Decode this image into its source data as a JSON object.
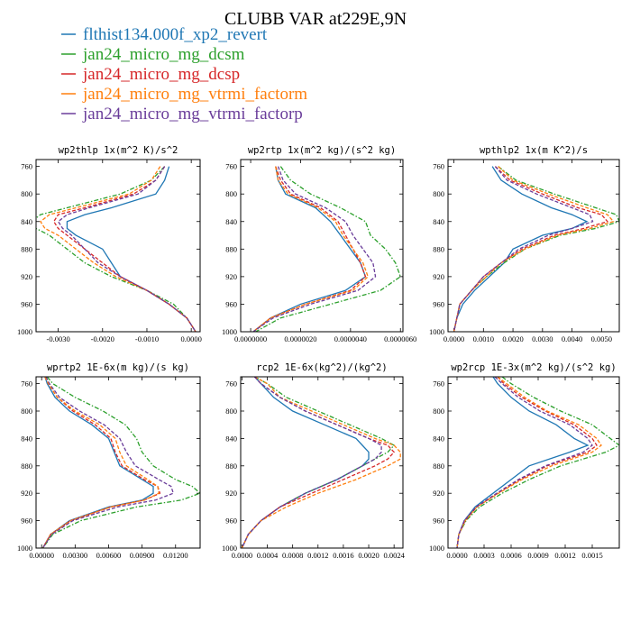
{
  "title": "CLUBB VAR at229E,9N",
  "colors": {
    "blue": "#1f77b4",
    "green": "#2ca02c",
    "red": "#d62728",
    "orange": "#ff7f0e",
    "purple": "#6a3d9a"
  },
  "legend": [
    {
      "label": "flthist134.000f_xp2_revert",
      "color": "#1f77b4",
      "dash": "solid"
    },
    {
      "label": "jan24_micro_mg_dcsm",
      "color": "#2ca02c",
      "dash": "dashdot"
    },
    {
      "label": "jan24_micro_mg_dcsp",
      "color": "#d62728",
      "dash": "dashed"
    },
    {
      "label": "jan24_micro_mg_vtrmi_factorm",
      "color": "#ff7f0e",
      "dash": "dashed"
    },
    {
      "label": "jan24_micro_mg_vtrmi_factorp",
      "color": "#6a3d9a",
      "dash": "dashed"
    }
  ],
  "chart_data": [
    {
      "type": "line",
      "title": "wp2thlp  1x(m^2 K)/s^2",
      "ylim": [
        1000,
        750
      ],
      "yticks": [
        "760",
        "800",
        "840",
        "880",
        "920",
        "960",
        "1000"
      ],
      "xlim": [
        -0.0035,
        0.0002
      ],
      "xticks": [
        -0.003,
        -0.002,
        -0.001,
        0.0
      ],
      "xtick_labels": [
        "-0.0030",
        "-0.0020",
        "-0.0010",
        "0.0000"
      ],
      "y": [
        760,
        780,
        800,
        820,
        830,
        840,
        850,
        860,
        880,
        900,
        920,
        940,
        960,
        980,
        990,
        1000
      ],
      "series": [
        {
          "values": [
            -0.0005,
            -0.0006,
            -0.0008,
            -0.0018,
            -0.0024,
            -0.0028,
            -0.0028,
            -0.0026,
            -0.002,
            -0.0018,
            -0.0016,
            -0.001,
            -0.0005,
            -0.0001,
            0.0,
            0.0001
          ]
        },
        {
          "values": [
            -0.0006,
            -0.0009,
            -0.0016,
            -0.0028,
            -0.0034,
            -0.0036,
            -0.0035,
            -0.0032,
            -0.0028,
            -0.0024,
            -0.0018,
            -0.001,
            -0.0004,
            -0.0001,
            0.0,
            0.0001
          ]
        },
        {
          "values": [
            -0.0006,
            -0.0008,
            -0.0013,
            -0.0024,
            -0.003,
            -0.0031,
            -0.003,
            -0.0028,
            -0.0024,
            -0.002,
            -0.0016,
            -0.001,
            -0.0005,
            -0.0001,
            0.0,
            0.0001
          ]
        },
        {
          "values": [
            -0.0007,
            -0.0009,
            -0.0014,
            -0.0026,
            -0.0032,
            -0.0034,
            -0.0033,
            -0.003,
            -0.0026,
            -0.0022,
            -0.0017,
            -0.001,
            -0.0005,
            -0.0001,
            0.0,
            0.0001
          ]
        },
        {
          "values": [
            -0.0006,
            -0.0008,
            -0.0012,
            -0.0023,
            -0.0028,
            -0.003,
            -0.0029,
            -0.0027,
            -0.0024,
            -0.0021,
            -0.0016,
            -0.001,
            -0.0005,
            -0.0001,
            0.0,
            0.0001
          ]
        }
      ]
    },
    {
      "type": "line",
      "title": "wp2rtp  1x(m^2 kg)/(s^2 kg)",
      "ylim": [
        1000,
        750
      ],
      "yticks": [
        "760",
        "800",
        "840",
        "880",
        "920",
        "960",
        "1000"
      ],
      "xlim": [
        -4e-07,
        6.1e-06
      ],
      "xticks": [
        0.0,
        2e-06,
        4e-06,
        6e-06
      ],
      "xtick_labels": [
        "0.0000000",
        "0.0000020",
        "0.0000040",
        "0.0000060"
      ],
      "y": [
        760,
        780,
        800,
        820,
        840,
        860,
        880,
        900,
        920,
        940,
        960,
        980,
        1000
      ],
      "series": [
        {
          "values": [
            1e-06,
            1.1e-06,
            1.4e-06,
            2.6e-06,
            3.2e-06,
            3.6e-06,
            4e-06,
            4.4e-06,
            4.6e-06,
            3.8e-06,
            2e-06,
            8e-07,
            1e-07
          ]
        },
        {
          "values": [
            1.2e-06,
            1.6e-06,
            2.4e-06,
            3.6e-06,
            4.6e-06,
            4.8e-06,
            5.4e-06,
            5.8e-06,
            6e-06,
            5.2e-06,
            3.2e-06,
            1.2e-06,
            2e-07
          ]
        },
        {
          "values": [
            1e-06,
            1.2e-06,
            1.6e-06,
            2.8e-06,
            3.5e-06,
            3.8e-06,
            4.1e-06,
            4.4e-06,
            4.6e-06,
            4e-06,
            2.2e-06,
            8e-07,
            1e-07
          ]
        },
        {
          "values": [
            1e-06,
            1.1e-06,
            1.5e-06,
            2.7e-06,
            3.4e-06,
            3.7e-06,
            4.1e-06,
            4.5e-06,
            4.7e-06,
            4.1e-06,
            2.2e-06,
            8e-07,
            1e-07
          ]
        },
        {
          "values": [
            1.1e-06,
            1.3e-06,
            1.8e-06,
            3e-06,
            3.8e-06,
            4.1e-06,
            4.5e-06,
            4.9e-06,
            5e-06,
            4.3e-06,
            2.4e-06,
            9e-07,
            1e-07
          ]
        }
      ]
    },
    {
      "type": "line",
      "title": "wpthlp2  1x(m K^2)/s",
      "ylim": [
        1000,
        750
      ],
      "yticks": [
        "760",
        "800",
        "840",
        "880",
        "920",
        "960",
        "1000"
      ],
      "xlim": [
        -0.0002,
        0.0056
      ],
      "xticks": [
        0.0,
        0.001,
        0.002,
        0.003,
        0.004,
        0.005
      ],
      "xtick_labels": [
        "0.0000",
        "0.0010",
        "0.0020",
        "0.0030",
        "0.0040",
        "0.0050"
      ],
      "y": [
        760,
        780,
        800,
        820,
        830,
        840,
        850,
        860,
        880,
        900,
        920,
        940,
        960,
        980,
        1000
      ],
      "series": [
        {
          "values": [
            0.0013,
            0.0016,
            0.0023,
            0.0033,
            0.004,
            0.0045,
            0.004,
            0.003,
            0.002,
            0.0017,
            0.0012,
            0.0007,
            0.0003,
            0.0001,
            0.0
          ]
        },
        {
          "values": [
            0.0015,
            0.0021,
            0.0034,
            0.0048,
            0.0055,
            0.0056,
            0.0048,
            0.0036,
            0.0024,
            0.0017,
            0.0011,
            0.0006,
            0.0002,
            0.0001,
            0.0
          ]
        },
        {
          "values": [
            0.0014,
            0.0019,
            0.003,
            0.0042,
            0.005,
            0.0052,
            0.0044,
            0.0034,
            0.0023,
            0.0016,
            0.001,
            0.0006,
            0.0002,
            0.0001,
            0.0
          ]
        },
        {
          "values": [
            0.0015,
            0.002,
            0.0032,
            0.0045,
            0.0052,
            0.0054,
            0.0046,
            0.0035,
            0.0024,
            0.0016,
            0.0011,
            0.0006,
            0.0002,
            0.0001,
            0.0
          ]
        },
        {
          "values": [
            0.0014,
            0.0018,
            0.0028,
            0.004,
            0.0046,
            0.0047,
            0.004,
            0.0032,
            0.0022,
            0.0016,
            0.001,
            0.0006,
            0.0002,
            0.0001,
            0.0
          ]
        }
      ]
    },
    {
      "type": "line",
      "title": "wprtp2  1E-6x(m kg)/(s kg)",
      "ylim": [
        1000,
        750
      ],
      "yticks": [
        "760",
        "800",
        "840",
        "880",
        "920",
        "960",
        "1000"
      ],
      "xlim": [
        -0.0005,
        0.0142
      ],
      "xticks": [
        0.0,
        0.003,
        0.006,
        0.009,
        0.012
      ],
      "xtick_labels": [
        "0.00000",
        "0.00300",
        "0.00600",
        "0.00900",
        "0.01200"
      ],
      "y": [
        750,
        760,
        780,
        800,
        820,
        840,
        860,
        880,
        900,
        910,
        920,
        930,
        940,
        960,
        980,
        1000
      ],
      "series": [
        {
          "values": [
            0.0003,
            0.0005,
            0.0012,
            0.0025,
            0.0045,
            0.006,
            0.0065,
            0.007,
            0.009,
            0.01,
            0.01,
            0.009,
            0.006,
            0.0025,
            0.0008,
            0.0001
          ]
        },
        {
          "values": [
            0.0005,
            0.001,
            0.003,
            0.0055,
            0.0075,
            0.0085,
            0.009,
            0.01,
            0.012,
            0.0135,
            0.0142,
            0.0125,
            0.0085,
            0.0035,
            0.001,
            0.0001
          ]
        },
        {
          "values": [
            0.0003,
            0.0006,
            0.0014,
            0.0028,
            0.0048,
            0.0062,
            0.0066,
            0.0072,
            0.0092,
            0.0104,
            0.0106,
            0.0092,
            0.0062,
            0.0026,
            0.0008,
            0.0001
          ]
        },
        {
          "values": [
            0.0003,
            0.0006,
            0.0014,
            0.003,
            0.0052,
            0.0066,
            0.007,
            0.0076,
            0.0095,
            0.0104,
            0.0105,
            0.0092,
            0.0062,
            0.0026,
            0.0008,
            0.0001
          ]
        },
        {
          "values": [
            0.0004,
            0.0007,
            0.0016,
            0.0034,
            0.0056,
            0.007,
            0.0076,
            0.0084,
            0.0105,
            0.0116,
            0.0118,
            0.0102,
            0.0068,
            0.0028,
            0.0009,
            0.0001
          ]
        }
      ]
    },
    {
      "type": "line",
      "title": "rcp2  1E-6x(kg^2)/(kg^2)",
      "ylim": [
        1000,
        750
      ],
      "yticks": [
        "760",
        "800",
        "840",
        "880",
        "920",
        "960",
        "1000"
      ],
      "xlim": [
        -2e-05,
        0.00254
      ],
      "xticks": [
        0.0,
        0.0004,
        0.0008,
        0.0012,
        0.0016,
        0.002,
        0.0024
      ],
      "xtick_labels": [
        "0.0000",
        "0.0004",
        "0.0008",
        "0.0012",
        "0.0016",
        "0.0020",
        "0.0024"
      ],
      "y": [
        750,
        760,
        780,
        800,
        820,
        840,
        850,
        860,
        870,
        880,
        900,
        920,
        940,
        960,
        980,
        1000
      ],
      "series": [
        {
          "values": [
            0.0002,
            0.0003,
            0.0005,
            0.0008,
            0.0013,
            0.0018,
            0.0019,
            0.002,
            0.002,
            0.0019,
            0.0015,
            0.001,
            0.0006,
            0.0003,
            0.0001,
            0.0
          ]
        },
        {
          "values": [
            0.0002,
            0.0004,
            0.0007,
            0.0012,
            0.0017,
            0.0022,
            0.0024,
            0.0023,
            0.0021,
            0.0019,
            0.0015,
            0.001,
            0.0006,
            0.0003,
            0.0001,
            0.0
          ]
        },
        {
          "values": [
            0.0002,
            0.0003,
            0.0006,
            0.001,
            0.0015,
            0.002,
            0.0023,
            0.0024,
            0.0023,
            0.0021,
            0.0016,
            0.0011,
            0.0006,
            0.0003,
            0.0001,
            0.0
          ]
        },
        {
          "values": [
            0.0002,
            0.0004,
            0.0006,
            0.0011,
            0.0016,
            0.0021,
            0.0024,
            0.0025,
            0.0025,
            0.0023,
            0.0018,
            0.0012,
            0.0007,
            0.0003,
            0.0001,
            0.0
          ]
        },
        {
          "values": [
            0.0002,
            0.0003,
            0.0006,
            0.001,
            0.0015,
            0.002,
            0.0022,
            0.0022,
            0.0021,
            0.0019,
            0.0015,
            0.001,
            0.0006,
            0.0003,
            0.0001,
            0.0
          ]
        }
      ]
    },
    {
      "type": "line",
      "title": "wp2rcp  1E-3x(m^2 kg)/(s^2 kg)",
      "ylim": [
        1000,
        750
      ],
      "yticks": [
        "760",
        "800",
        "840",
        "880",
        "920",
        "960",
        "1000"
      ],
      "xlim": [
        -0.0001,
        0.0018
      ],
      "xticks": [
        0.0,
        0.0003,
        0.0006,
        0.0009,
        0.0012,
        0.0015
      ],
      "xtick_labels": [
        "0.0000",
        "0.0003",
        "0.0006",
        "0.0009",
        "0.0012",
        "0.0015"
      ],
      "y": [
        750,
        760,
        780,
        800,
        820,
        840,
        850,
        860,
        880,
        900,
        920,
        940,
        960,
        980,
        1000
      ],
      "series": [
        {
          "values": [
            0.0004,
            0.00045,
            0.0006,
            0.0008,
            0.0011,
            0.0013,
            0.00145,
            0.00125,
            0.0008,
            0.0006,
            0.0004,
            0.0002,
            8e-05,
            2e-05,
            0.0
          ]
        },
        {
          "values": [
            0.0005,
            0.0006,
            0.00085,
            0.00115,
            0.0015,
            0.0017,
            0.0018,
            0.00165,
            0.00115,
            0.0008,
            0.0005,
            0.00025,
            0.0001,
            2e-05,
            0.0
          ]
        },
        {
          "values": [
            0.00045,
            0.00052,
            0.00072,
            0.00098,
            0.0013,
            0.0015,
            0.00155,
            0.00145,
            0.001,
            0.0007,
            0.00045,
            0.00022,
            9e-05,
            2e-05,
            0.0
          ]
        },
        {
          "values": [
            0.00045,
            0.00055,
            0.00075,
            0.001,
            0.00135,
            0.00155,
            0.0016,
            0.0015,
            0.00105,
            0.00072,
            0.00046,
            0.00022,
            9e-05,
            2e-05,
            0.0
          ]
        },
        {
          "values": [
            0.00042,
            0.0005,
            0.00068,
            0.00092,
            0.00125,
            0.00145,
            0.0015,
            0.0014,
            0.00098,
            0.00068,
            0.00044,
            0.00021,
            8e-05,
            2e-05,
            0.0
          ]
        }
      ]
    }
  ]
}
